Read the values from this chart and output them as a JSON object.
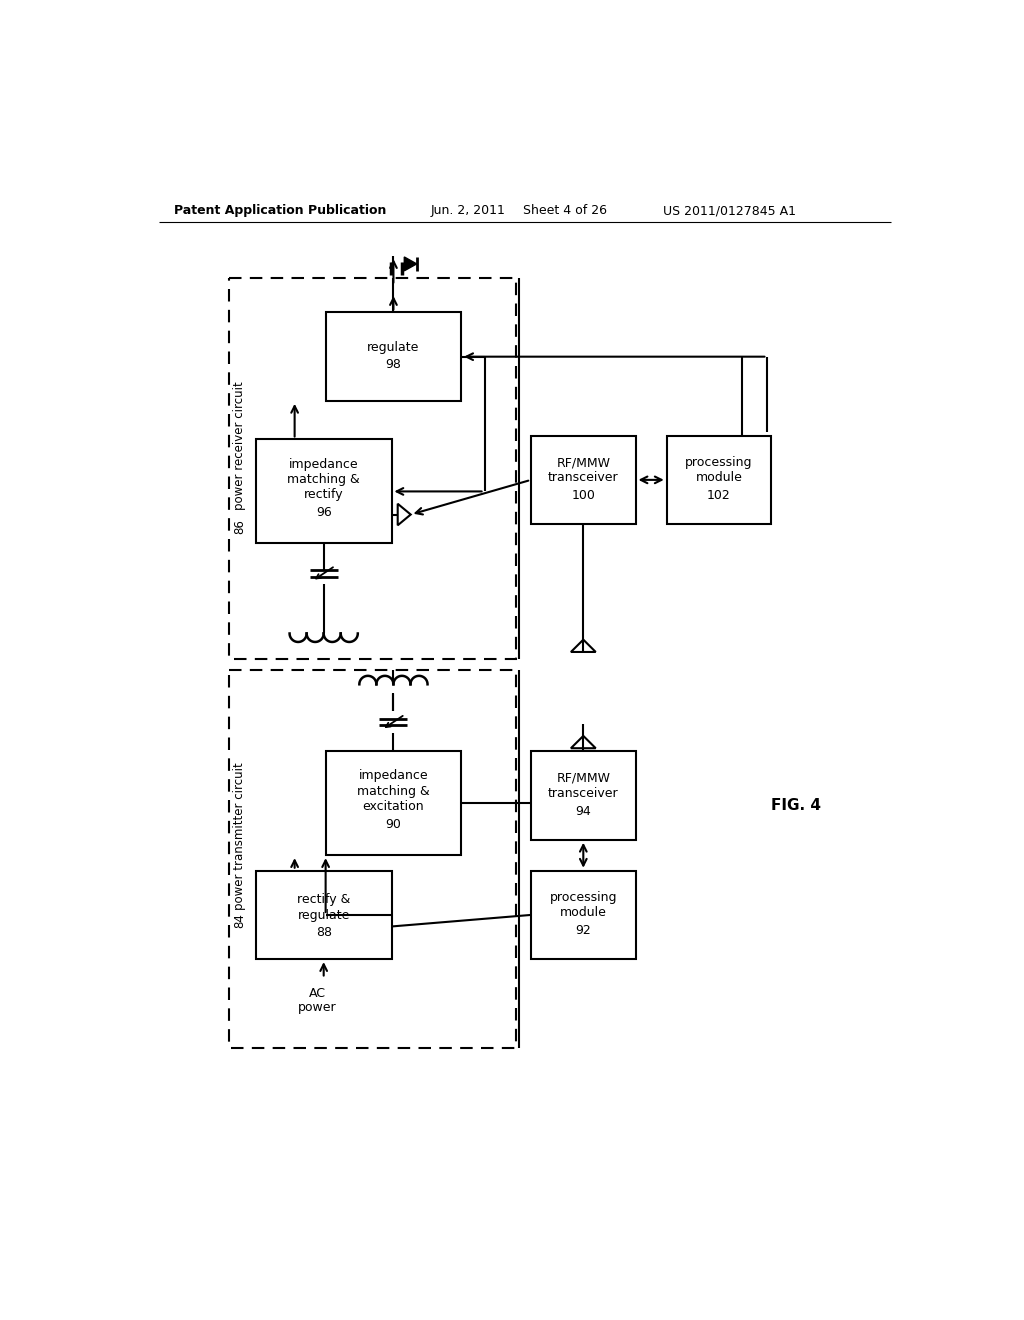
{
  "bg_color": "#ffffff",
  "header_left": "Patent Application Publication",
  "header_mid1": "Jun. 2, 2011",
  "header_mid2": "Sheet 4 of 26",
  "header_right": "US 2011/0127845 A1",
  "fig_label": "FIG. 4"
}
